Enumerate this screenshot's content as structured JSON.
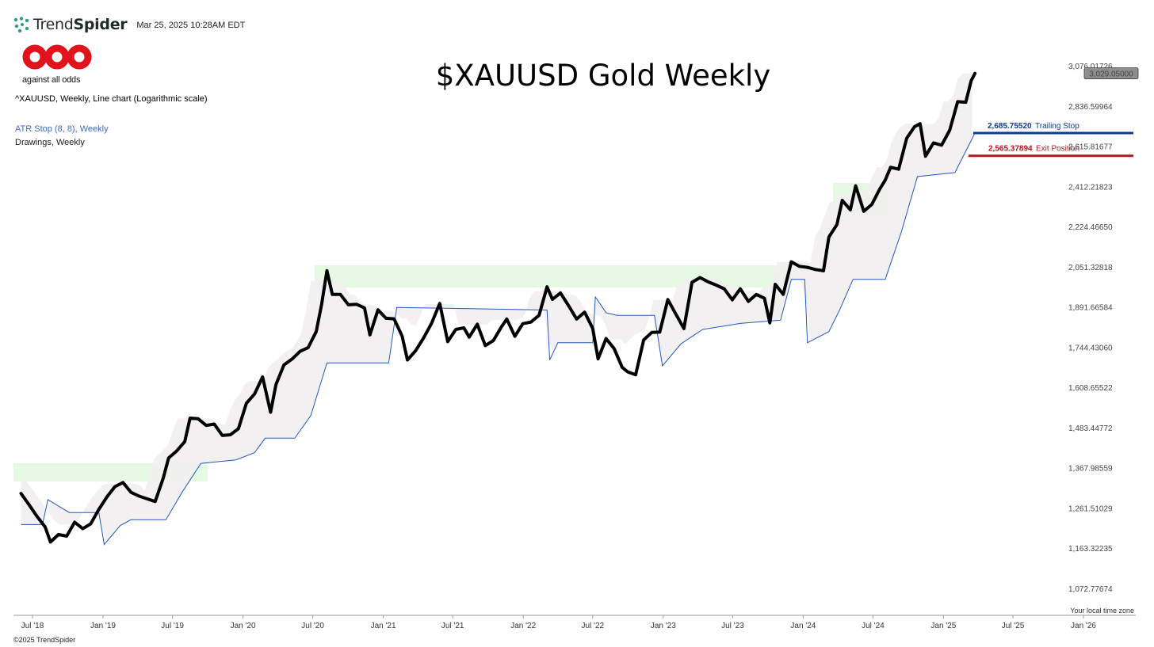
{
  "header": {
    "brand_light": "Trend",
    "brand_bold": "Spider",
    "timestamp": "Mar 25, 2025 10:28AM EDT"
  },
  "logo": {
    "tagline": "against all odds",
    "color": "#e1121b"
  },
  "chart_title": "$XAUUSD Gold Weekly",
  "legend": {
    "main": "^XAUUSD, Weekly, Line chart (Logarithmic scale)",
    "atr": "ATR Stop (8, 8), Weekly",
    "drawings": "Drawings, Weekly"
  },
  "footer": {
    "copyright": "©2025 TrendSpider",
    "timezone": "Your local time zone"
  },
  "colors": {
    "price": "#000000",
    "atr_stop": "#2457c5",
    "band": "#f1eeee",
    "zone": "#dcf7d9",
    "trailing": "#0e3a91",
    "exit": "#b8141b"
  },
  "chart_data": {
    "type": "line",
    "y_scale": "log",
    "y_ticks": [
      "3,076.01726",
      "2,836.59964",
      "2,615.81677",
      "2,412.21823",
      "2,224.46650",
      "2,051.32818",
      "1,891.66584",
      "1,744.43060",
      "1,608.65522",
      "1,483.44772",
      "1,367.98559",
      "1,261.51029",
      "1,163.32235",
      "1,072.77674"
    ],
    "x_ticks": [
      "Jul '18",
      "Jan '19",
      "Jul '19",
      "Jan '20",
      "Jul '20",
      "Jan '21",
      "Jul '21",
      "Jan '22",
      "Jul '22",
      "Jan '23",
      "Jul '23",
      "Jan '24",
      "Jul '24",
      "Jan '25",
      "Jul '25",
      "Jan '26"
    ],
    "last_price": {
      "label": "3,029.05000",
      "value": 3029.05
    },
    "levels": [
      {
        "name": "Trailing Stop",
        "value_label": "2,685.75520",
        "value": 2685.7552
      },
      {
        "name": "Exit Position",
        "value_label": "2,565.37894",
        "value": 2565.37894
      }
    ],
    "series": [
      {
        "name": "^XAUUSD",
        "points": [
          [
            "2018-06-01",
            1299
          ],
          [
            "2018-06-22",
            1270
          ],
          [
            "2018-07-13",
            1240
          ],
          [
            "2018-08-03",
            1214
          ],
          [
            "2018-08-17",
            1178
          ],
          [
            "2018-09-07",
            1196
          ],
          [
            "2018-09-28",
            1192
          ],
          [
            "2018-10-19",
            1226
          ],
          [
            "2018-11-09",
            1210
          ],
          [
            "2018-11-30",
            1222
          ],
          [
            "2018-12-21",
            1258
          ],
          [
            "2019-01-11",
            1290
          ],
          [
            "2019-02-01",
            1317
          ],
          [
            "2019-02-22",
            1328
          ],
          [
            "2019-03-15",
            1302
          ],
          [
            "2019-04-05",
            1292
          ],
          [
            "2019-04-26",
            1285
          ],
          [
            "2019-05-17",
            1278
          ],
          [
            "2019-06-07",
            1340
          ],
          [
            "2019-06-21",
            1395
          ],
          [
            "2019-07-12",
            1415
          ],
          [
            "2019-08-02",
            1442
          ],
          [
            "2019-08-16",
            1512
          ],
          [
            "2019-09-06",
            1510
          ],
          [
            "2019-09-27",
            1490
          ],
          [
            "2019-10-18",
            1494
          ],
          [
            "2019-11-08",
            1460
          ],
          [
            "2019-11-29",
            1462
          ],
          [
            "2019-12-20",
            1480
          ],
          [
            "2020-01-10",
            1558
          ],
          [
            "2020-01-31",
            1587
          ],
          [
            "2020-02-21",
            1643
          ],
          [
            "2020-03-13",
            1530
          ],
          [
            "2020-03-27",
            1618
          ],
          [
            "2020-04-17",
            1683
          ],
          [
            "2020-05-08",
            1703
          ],
          [
            "2020-05-29",
            1730
          ],
          [
            "2020-06-19",
            1743
          ],
          [
            "2020-07-10",
            1800
          ],
          [
            "2020-07-24",
            1902
          ],
          [
            "2020-08-07",
            2035
          ],
          [
            "2020-08-21",
            1940
          ],
          [
            "2020-09-11",
            1940
          ],
          [
            "2020-10-02",
            1900
          ],
          [
            "2020-10-23",
            1902
          ],
          [
            "2020-11-13",
            1888
          ],
          [
            "2020-11-27",
            1788
          ],
          [
            "2020-12-18",
            1881
          ],
          [
            "2021-01-08",
            1849
          ],
          [
            "2021-01-29",
            1847
          ],
          [
            "2021-02-19",
            1784
          ],
          [
            "2021-03-05",
            1700
          ],
          [
            "2021-03-26",
            1732
          ],
          [
            "2021-04-16",
            1777
          ],
          [
            "2021-05-07",
            1831
          ],
          [
            "2021-05-28",
            1905
          ],
          [
            "2021-06-18",
            1764
          ],
          [
            "2021-07-09",
            1808
          ],
          [
            "2021-07-30",
            1814
          ],
          [
            "2021-08-13",
            1780
          ],
          [
            "2021-09-03",
            1827
          ],
          [
            "2021-09-24",
            1750
          ],
          [
            "2021-10-15",
            1768
          ],
          [
            "2021-11-05",
            1817
          ],
          [
            "2021-11-19",
            1846
          ],
          [
            "2021-12-10",
            1783
          ],
          [
            "2021-12-31",
            1829
          ],
          [
            "2022-01-21",
            1835
          ],
          [
            "2022-02-11",
            1860
          ],
          [
            "2022-03-04",
            1970
          ],
          [
            "2022-03-18",
            1921
          ],
          [
            "2022-04-08",
            1946
          ],
          [
            "2022-04-29",
            1897
          ],
          [
            "2022-05-20",
            1846
          ],
          [
            "2022-06-10",
            1872
          ],
          [
            "2022-07-01",
            1812
          ],
          [
            "2022-07-15",
            1704
          ],
          [
            "2022-08-05",
            1775
          ],
          [
            "2022-08-26",
            1739
          ],
          [
            "2022-09-16",
            1675
          ],
          [
            "2022-09-30",
            1660
          ],
          [
            "2022-10-21",
            1650
          ],
          [
            "2022-11-11",
            1770
          ],
          [
            "2022-12-02",
            1797
          ],
          [
            "2022-12-23",
            1798
          ],
          [
            "2023-01-13",
            1920
          ],
          [
            "2023-02-03",
            1864
          ],
          [
            "2023-02-24",
            1811
          ],
          [
            "2023-03-17",
            1988
          ],
          [
            "2023-04-07",
            2007
          ],
          [
            "2023-04-28",
            1990
          ],
          [
            "2023-05-19",
            1977
          ],
          [
            "2023-06-09",
            1962
          ],
          [
            "2023-06-30",
            1919
          ],
          [
            "2023-07-21",
            1962
          ],
          [
            "2023-08-11",
            1913
          ],
          [
            "2023-09-01",
            1940
          ],
          [
            "2023-09-22",
            1925
          ],
          [
            "2023-10-06",
            1832
          ],
          [
            "2023-10-20",
            1980
          ],
          [
            "2023-11-10",
            1940
          ],
          [
            "2023-12-01",
            2072
          ],
          [
            "2023-12-22",
            2053
          ],
          [
            "2024-01-12",
            2049
          ],
          [
            "2024-02-02",
            2040
          ],
          [
            "2024-02-23",
            2035
          ],
          [
            "2024-03-08",
            2178
          ],
          [
            "2024-03-29",
            2233
          ],
          [
            "2024-04-12",
            2345
          ],
          [
            "2024-05-03",
            2301
          ],
          [
            "2024-05-17",
            2415
          ],
          [
            "2024-06-07",
            2294
          ],
          [
            "2024-06-28",
            2326
          ],
          [
            "2024-07-19",
            2400
          ],
          [
            "2024-08-02",
            2443
          ],
          [
            "2024-08-16",
            2507
          ],
          [
            "2024-09-06",
            2497
          ],
          [
            "2024-09-27",
            2658
          ],
          [
            "2024-10-18",
            2721
          ],
          [
            "2024-11-01",
            2737
          ],
          [
            "2024-11-15",
            2563
          ],
          [
            "2024-12-06",
            2633
          ],
          [
            "2024-12-27",
            2621
          ],
          [
            "2025-01-17",
            2701
          ],
          [
            "2025-02-07",
            2861
          ],
          [
            "2025-02-28",
            2858
          ],
          [
            "2025-03-14",
            2984
          ],
          [
            "2025-03-24",
            3029
          ]
        ]
      },
      {
        "name": "ATR Stop (8, 8), Weekly",
        "points": [
          [
            "2018-06-01",
            1220
          ],
          [
            "2018-07-27",
            1220
          ],
          [
            "2018-08-10",
            1283
          ],
          [
            "2018-10-05",
            1250
          ],
          [
            "2018-12-21",
            1250
          ],
          [
            "2019-01-04",
            1172
          ],
          [
            "2019-02-15",
            1218
          ],
          [
            "2019-03-15",
            1232
          ],
          [
            "2019-06-14",
            1232
          ],
          [
            "2019-07-26",
            1302
          ],
          [
            "2019-09-13",
            1380
          ],
          [
            "2019-12-13",
            1390
          ],
          [
            "2020-01-31",
            1410
          ],
          [
            "2020-02-28",
            1452
          ],
          [
            "2020-05-15",
            1452
          ],
          [
            "2020-06-26",
            1520
          ],
          [
            "2020-08-07",
            1690
          ],
          [
            "2021-01-15",
            1690
          ],
          [
            "2021-02-05",
            1890
          ],
          [
            "2022-03-04",
            1880
          ],
          [
            "2022-03-11",
            1700
          ],
          [
            "2022-04-01",
            1760
          ],
          [
            "2022-07-01",
            1760
          ],
          [
            "2022-07-08",
            1930
          ],
          [
            "2022-08-05",
            1870
          ],
          [
            "2022-09-02",
            1860
          ],
          [
            "2022-12-09",
            1860
          ],
          [
            "2022-12-30",
            1680
          ],
          [
            "2023-02-17",
            1757
          ],
          [
            "2023-04-14",
            1808
          ],
          [
            "2023-07-21",
            1830
          ],
          [
            "2023-11-03",
            1842
          ],
          [
            "2023-12-01",
            2000
          ],
          [
            "2024-01-05",
            2000
          ],
          [
            "2024-01-12",
            1760
          ],
          [
            "2024-03-08",
            1800
          ],
          [
            "2024-04-05",
            1880
          ],
          [
            "2024-05-10",
            2000
          ],
          [
            "2024-08-02",
            2000
          ],
          [
            "2024-09-13",
            2200
          ],
          [
            "2024-10-25",
            2460
          ],
          [
            "2025-01-31",
            2480
          ],
          [
            "2025-03-24",
            2685.7552
          ]
        ]
      }
    ]
  }
}
